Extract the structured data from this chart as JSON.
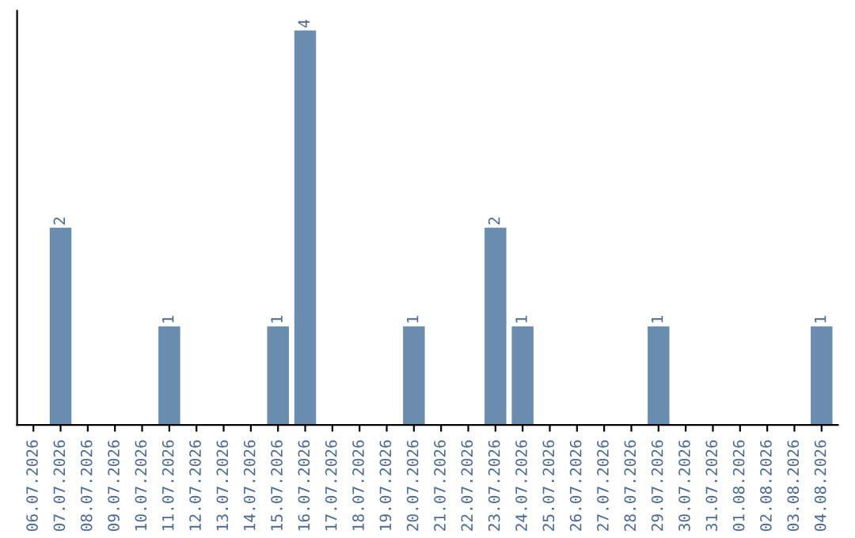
{
  "chart_data": {
    "type": "bar",
    "categories": [
      "06.07.2026",
      "07.07.2026",
      "08.07.2026",
      "09.07.2026",
      "10.07.2026",
      "11.07.2026",
      "12.07.2026",
      "13.07.2026",
      "14.07.2026",
      "15.07.2026",
      "16.07.2026",
      "17.07.2026",
      "18.07.2026",
      "19.07.2026",
      "20.07.2026",
      "21.07.2026",
      "22.07.2026",
      "23.07.2026",
      "24.07.2026",
      "25.07.2026",
      "26.07.2026",
      "27.07.2026",
      "28.07.2026",
      "29.07.2026",
      "30.07.2026",
      "31.07.2026",
      "01.08.2026",
      "02.08.2026",
      "03.08.2026",
      "04.08.2026"
    ],
    "values": [
      0,
      2,
      0,
      0,
      0,
      1,
      0,
      0,
      0,
      1,
      4,
      0,
      0,
      0,
      1,
      0,
      0,
      2,
      1,
      0,
      0,
      0,
      0,
      1,
      0,
      0,
      0,
      0,
      0,
      1
    ],
    "value_labels": [
      null,
      "2",
      null,
      null,
      null,
      "1",
      null,
      null,
      null,
      "1",
      "4",
      null,
      null,
      null,
      "1",
      null,
      null,
      "2",
      "1",
      null,
      null,
      null,
      null,
      "1",
      null,
      null,
      null,
      null,
      null,
      "1"
    ],
    "color": "#6a8caf",
    "tick_labels": "x",
    "grid": false
  }
}
